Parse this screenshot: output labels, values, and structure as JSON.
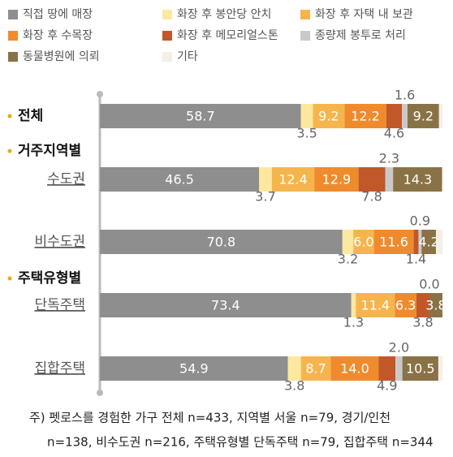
{
  "chart_data": {
    "type": "stacked-barh",
    "categories": [
      "전체",
      "수도권",
      "비수도권",
      "단독주택",
      "집합주택"
    ],
    "groups": [
      {
        "name": "거주지역별",
        "start": 1
      },
      {
        "name": "주택유형별",
        "start": 3
      }
    ],
    "xlim": [
      0,
      100
    ],
    "series": [
      {
        "name": "직접 땅에 매장",
        "color": "#8e8e8e",
        "values": [
          58.7,
          46.5,
          70.8,
          73.4,
          54.9
        ],
        "value_labels": [
          "58.7",
          "46.5",
          "70.8",
          "73.4",
          "54.9"
        ]
      },
      {
        "name": "화장 후 봉안당 안치",
        "color": "#fde8a0",
        "values": [
          3.5,
          3.7,
          3.2,
          1.3,
          3.8
        ],
        "value_labels": [
          "3.5",
          "3.7",
          "3.2",
          "1.3",
          "3.8"
        ]
      },
      {
        "name": "화장 후 자택 내 보관",
        "color": "#f6b54c",
        "values": [
          9.2,
          12.4,
          6.0,
          11.4,
          8.7
        ],
        "value_labels": [
          "9.2",
          "12.4",
          "6.0",
          "11.4",
          "8.7"
        ]
      },
      {
        "name": "화장 후 수목장",
        "color": "#f08b2d",
        "values": [
          12.2,
          12.9,
          11.6,
          6.3,
          14.0
        ],
        "value_labels": [
          "12.2",
          "12.9",
          "11.6",
          "6.3",
          "14.0"
        ]
      },
      {
        "name": "화장 후 메모리얼스톤",
        "color": "#c2572a",
        "values": [
          4.6,
          7.8,
          1.4,
          3.8,
          4.9
        ],
        "value_labels": [
          "4.6",
          "7.8",
          "1.4",
          "3.8",
          "4.9"
        ]
      },
      {
        "name": "종량제 봉투로 처리",
        "color": "#c9c9c9",
        "values": [
          1.6,
          2.3,
          0.9,
          0.0,
          2.0
        ],
        "value_labels": [
          "1.6",
          "2.3",
          "0.9",
          "0.0",
          "2.0"
        ]
      },
      {
        "name": "동물병원에 의뢰",
        "color": "#8a7247",
        "values": [
          9.2,
          14.3,
          4.2,
          3.8,
          10.5
        ],
        "value_labels": [
          "9.2",
          "14.3",
          "4.2",
          "3.8",
          "10.5"
        ]
      },
      {
        "name": "기타",
        "color": "#f4f0e6",
        "values": [
          1.0,
          0.1,
          1.9,
          0.0,
          1.2
        ]
      }
    ],
    "notes": [
      "주) 펫로스를 경험한 가구 전체 n=433, 지역별 서울 n=79, 경기/인천",
      "n=138, 비수도권 n=216, 주택유형별 단독주택 n=79, 집합주택 n=344"
    ]
  }
}
